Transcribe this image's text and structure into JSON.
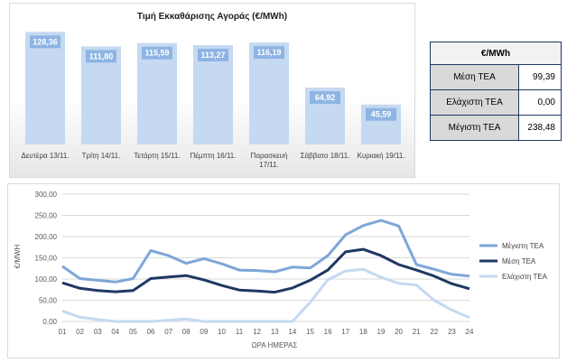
{
  "chart_data": [
    {
      "type": "bar",
      "title": "Τιμή Εκκαθάρισης Αγοράς (€/MWh)",
      "categories": [
        [
          "Δευτέρα 13/11."
        ],
        [
          "Τρίτη 14/11."
        ],
        [
          "Τετάρτη 15/11."
        ],
        [
          "Πέμπτη 16/11."
        ],
        [
          "Παρασκευή",
          "17/11."
        ],
        [
          "Σάββατο 18/11."
        ],
        [
          "Κυριακή 19/11."
        ]
      ],
      "values": [
        128.36,
        111.8,
        115.59,
        113.27,
        116.19,
        64.92,
        45.59
      ],
      "data_labels": [
        "128,36",
        "111,80",
        "115,59",
        "113,27",
        "116,19",
        "64,92",
        "45,59"
      ],
      "ylim": [
        0,
        140
      ],
      "grid": false,
      "colors": {
        "bar": "#c5d9f1",
        "label_bg": "#8eb4e3",
        "label_text": "#ffffff"
      }
    },
    {
      "type": "line",
      "xlabel": "ΩΡΑ ΗΜΕΡΑΣ",
      "ylabel": "€/MWH",
      "ylim": [
        0,
        300
      ],
      "yticks": [
        "0,00",
        "50,00",
        "100,00",
        "150,00",
        "200,00",
        "250,00",
        "300,00"
      ],
      "x": [
        "01",
        "02",
        "03",
        "04",
        "05",
        "06",
        "07",
        "08",
        "09",
        "10",
        "11",
        "12",
        "13",
        "14",
        "15",
        "16",
        "17",
        "18",
        "19",
        "20",
        "21",
        "22",
        "23",
        "24"
      ],
      "grid": true,
      "legend": "right",
      "series": [
        {
          "name": "Μέγιστη ΤΕΑ",
          "color": "#7ea6d8",
          "values": [
            130,
            101,
            97,
            93,
            101,
            167,
            155,
            137,
            148,
            136,
            121,
            120,
            117,
            128,
            126,
            155,
            204,
            226,
            238,
            225,
            134,
            123,
            111,
            107
          ]
        },
        {
          "name": "Μέση ΤΕΑ",
          "color": "#1f3864",
          "values": [
            91,
            78,
            73,
            70,
            73,
            101,
            105,
            108,
            98,
            85,
            74,
            72,
            69,
            79,
            97,
            121,
            164,
            170,
            155,
            134,
            121,
            107,
            89,
            77
          ]
        },
        {
          "name": "Ελάχιστη ΤΕΑ",
          "color": "#c5d9f1",
          "values": [
            25,
            10,
            5,
            0,
            0,
            0,
            3,
            6,
            0,
            0,
            0,
            0,
            0,
            0,
            45,
            98,
            119,
            123,
            104,
            90,
            86,
            50,
            27,
            9
          ]
        }
      ]
    }
  ],
  "stats": {
    "header": "€/MWh",
    "rows": [
      {
        "label": "Μέση ΤΕΑ",
        "value": "99,39"
      },
      {
        "label": "Ελάχιστη ΤΕΑ",
        "value": "0,00"
      },
      {
        "label": "Μέγιστη ΤΕΑ",
        "value": "238,48"
      }
    ]
  }
}
